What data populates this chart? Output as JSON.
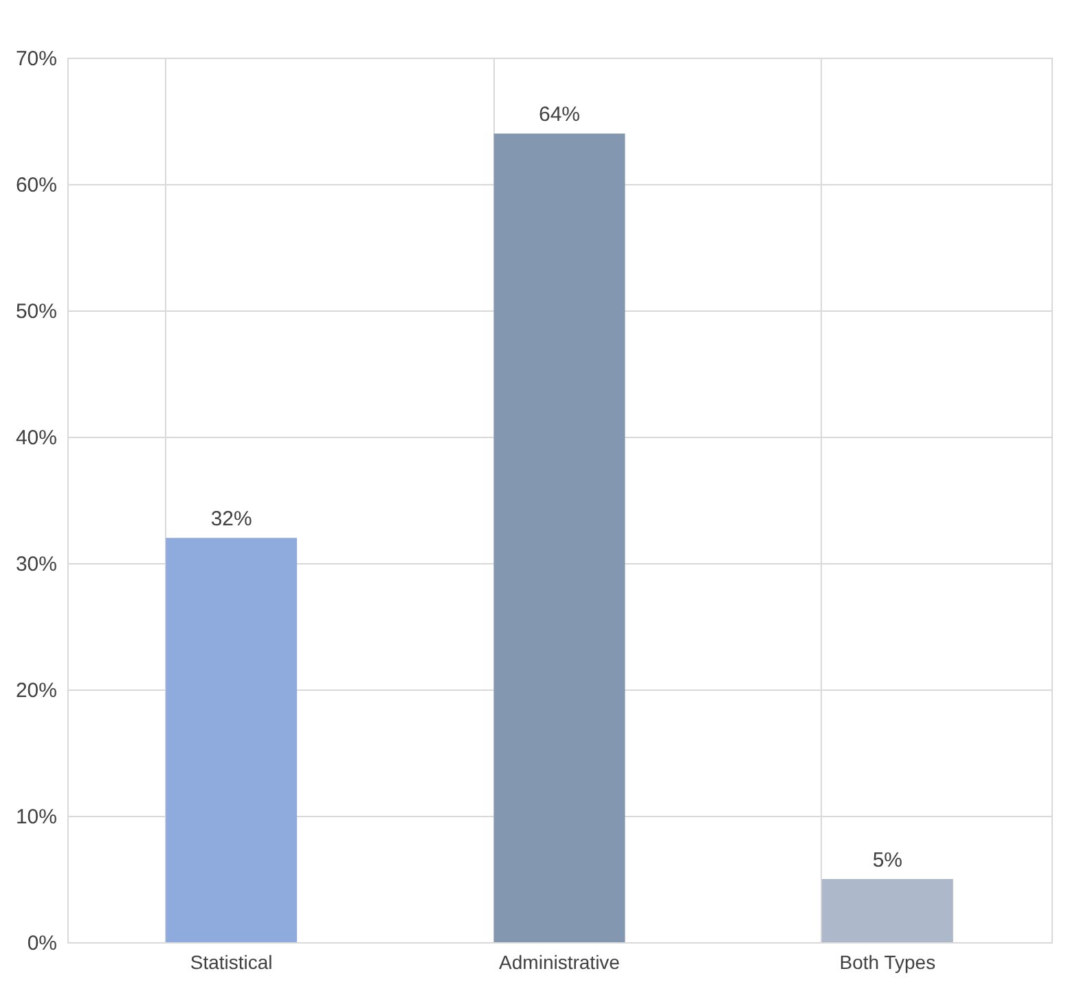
{
  "chart_data": {
    "type": "bar",
    "categories": [
      "Statistical",
      "Administrative",
      "Both Types"
    ],
    "values": [
      32,
      64,
      5
    ],
    "colors": [
      "#8faadc",
      "#8497b0",
      "#adb9ca"
    ],
    "value_labels": [
      "32%",
      "64%",
      "5%"
    ],
    "ylim": [
      0,
      70
    ],
    "yticks": [
      {
        "value": 0,
        "label": "0%"
      },
      {
        "value": 10,
        "label": "10%"
      },
      {
        "value": 20,
        "label": "20%"
      },
      {
        "value": 30,
        "label": "30%"
      },
      {
        "value": 40,
        "label": "40%"
      },
      {
        "value": 50,
        "label": "50%"
      },
      {
        "value": 60,
        "label": "60%"
      },
      {
        "value": 70,
        "label": "70%"
      }
    ],
    "grid": true
  }
}
